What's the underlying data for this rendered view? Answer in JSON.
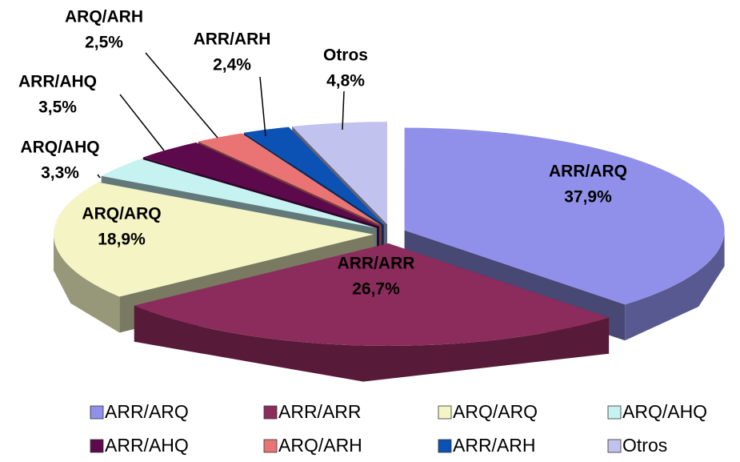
{
  "chart_data": {
    "type": "pie",
    "categories": [
      "ARR/ARQ",
      "ARR/ARR",
      "ARQ/ARQ",
      "ARQ/AHQ",
      "ARR/AHQ",
      "ARQ/ARH",
      "ARR/ARH",
      "Otros"
    ],
    "values": [
      37.9,
      26.7,
      18.9,
      3.3,
      3.5,
      2.5,
      2.4,
      4.8
    ],
    "value_labels": [
      "37,9%",
      "26,7%",
      "18,9%",
      "3,3%",
      "3,5%",
      "2,5%",
      "2,4%",
      "4,8%"
    ],
    "colors": [
      "#9090ea",
      "#8c2c5c",
      "#f4f4c4",
      "#c6f2f2",
      "#5c0a4c",
      "#ea7474",
      "#0c52b4",
      "#c2c2ee"
    ],
    "legend": "bottom"
  }
}
